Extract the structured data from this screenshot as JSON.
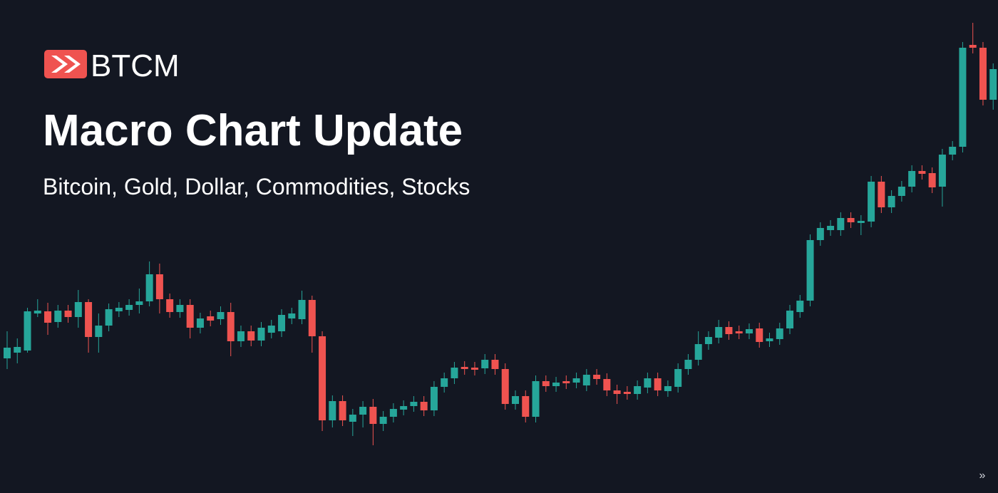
{
  "header": {
    "logo_text": "BTCM",
    "title": "Macro Chart Update",
    "subtitle": "Bitcoin, Gold, Dollar, Commodities, Stocks"
  },
  "chart_data": {
    "type": "candlestick",
    "open": [
      189,
      197,
      200,
      252,
      255,
      240,
      256,
      247,
      268,
      219,
      235,
      255,
      257,
      264,
      269,
      307,
      272,
      254,
      264,
      232,
      248,
      244,
      254,
      213,
      227,
      214,
      225,
      227,
      245,
      244,
      271,
      220,
      102,
      129,
      100,
      110,
      121,
      97,
      107,
      117,
      122,
      128,
      116,
      149,
      161,
      177,
      176,
      175,
      187,
      174,
      125,
      136,
      107,
      157,
      150,
      157,
      155,
      151,
      166,
      160,
      144,
      142,
      139,
      148,
      161,
      143,
      149,
      174,
      187,
      209,
      218,
      233,
      227,
      224,
      231,
      213,
      216,
      231,
      254,
      270,
      355,
      369,
      369,
      386,
      379,
      381,
      437,
      401,
      417,
      430,
      452,
      449,
      430,
      475,
      486,
      629,
      625,
      552
    ],
    "high": [
      227,
      217,
      260,
      272,
      267,
      264,
      264,
      285,
      272,
      252,
      266,
      268,
      272,
      287,
      325,
      322,
      280,
      272,
      272,
      253,
      256,
      262,
      267,
      235,
      235,
      240,
      243,
      258,
      260,
      284,
      277,
      227,
      137,
      137,
      118,
      129,
      132,
      115,
      126,
      130,
      136,
      136,
      157,
      169,
      184,
      185,
      184,
      195,
      195,
      182,
      144,
      144,
      165,
      165,
      163,
      165,
      169,
      174,
      174,
      168,
      152,
      150,
      158,
      169,
      169,
      158,
      182,
      195,
      227,
      227,
      243,
      241,
      235,
      238,
      239,
      225,
      239,
      264,
      278,
      363,
      380,
      383,
      394,
      394,
      390,
      445,
      445,
      425,
      438,
      460,
      460,
      457,
      483,
      494,
      633,
      660,
      633,
      603
    ],
    "low": [
      174,
      182,
      197,
      247,
      222,
      232,
      239,
      232,
      197,
      197,
      227,
      247,
      249,
      252,
      262,
      252,
      246,
      246,
      217,
      224,
      234,
      236,
      192,
      205,
      206,
      206,
      217,
      219,
      237,
      237,
      197,
      87,
      92,
      94,
      80,
      92,
      67,
      87,
      99,
      109,
      114,
      108,
      108,
      141,
      153,
      166,
      165,
      167,
      166,
      117,
      117,
      99,
      99,
      142,
      142,
      146,
      147,
      143,
      152,
      136,
      125,
      131,
      131,
      140,
      136,
      135,
      141,
      166,
      179,
      201,
      210,
      215,
      216,
      216,
      204,
      205,
      208,
      223,
      246,
      262,
      347,
      361,
      361,
      372,
      362,
      373,
      393,
      393,
      409,
      422,
      440,
      421,
      402,
      467,
      478,
      617,
      544,
      538
    ],
    "close": [
      204,
      205,
      255,
      256,
      239,
      256,
      247,
      268,
      219,
      235,
      258,
      260,
      264,
      269,
      307,
      272,
      254,
      264,
      232,
      245,
      242,
      254,
      213,
      227,
      214,
      232,
      235,
      250,
      252,
      271,
      220,
      102,
      129,
      102,
      110,
      121,
      97,
      107,
      118,
      122,
      128,
      116,
      149,
      161,
      176,
      174,
      173,
      187,
      174,
      125,
      136,
      107,
      157,
      150,
      155,
      154,
      161,
      166,
      160,
      144,
      139,
      139,
      150,
      161,
      144,
      150,
      174,
      187,
      209,
      219,
      233,
      223,
      224,
      230,
      212,
      217,
      231,
      256,
      270,
      355,
      372,
      375,
      386,
      380,
      382,
      437,
      401,
      417,
      430,
      452,
      448,
      429,
      475,
      486,
      625,
      625,
      552,
      595
    ],
    "up_color": "#26a69a",
    "down_color": "#ef5350"
  },
  "scroll_button": "»"
}
